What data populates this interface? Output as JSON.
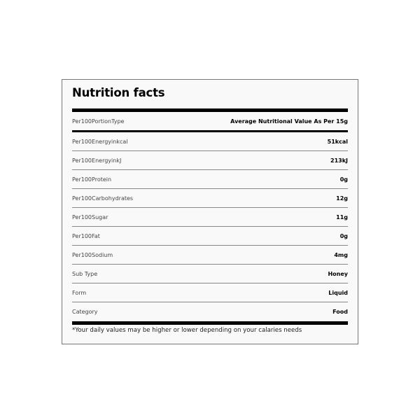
{
  "title": "Nutrition facts",
  "header_row": {
    "label": "Per100PortionType",
    "value": "Average Nutritional Value As Per 15g"
  },
  "rows": [
    {
      "label": "Per100Energyinkcal",
      "value": "51kcal"
    },
    {
      "label": "Per100EnergyinkJ",
      "value": "213kJ"
    },
    {
      "label": "Per100Protein",
      "value": "0g"
    },
    {
      "label": "Per100Carbohydrates",
      "value": "12g"
    },
    {
      "label": "Per100Sugar",
      "value": "11g"
    },
    {
      "label": "Per100Fat",
      "value": "0g"
    },
    {
      "label": "Per100Sodium",
      "value": "4mg"
    },
    {
      "label": "Sub Type",
      "value": "Honey"
    },
    {
      "label": "Form",
      "value": "Liquid"
    },
    {
      "label": "Category",
      "value": "Food"
    }
  ],
  "footnote": "*Your daily values may be higher or lower depending on your calaries needs"
}
